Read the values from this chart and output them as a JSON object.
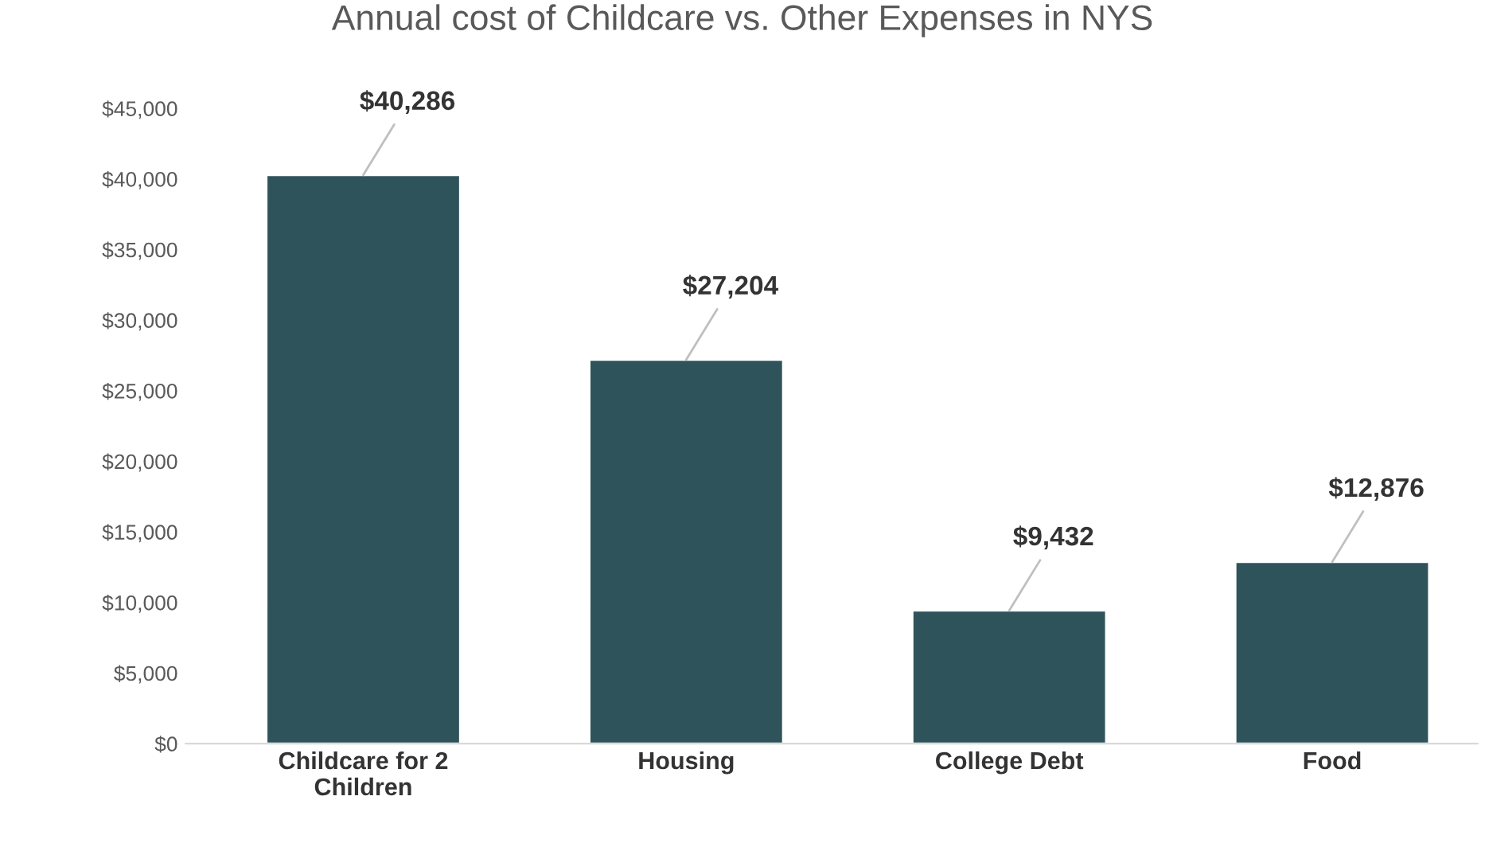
{
  "chart_data": {
    "type": "bar",
    "title": "Annual cost of Childcare vs. Other Expenses in NYS",
    "categories": [
      "Childcare for 2\nChildren",
      "Housing",
      "College Debt",
      "Food"
    ],
    "values": [
      40286,
      27204,
      9432,
      12876
    ],
    "color": "#2f535a",
    "value_labels": [
      "$40,286",
      "$27,204",
      "$9,432",
      "$12,876"
    ],
    "ylim": [
      0,
      45000
    ],
    "yticks": [
      {
        "value": 0,
        "label": "$0"
      },
      {
        "value": 5000,
        "label": "$5,000"
      },
      {
        "value": 10000,
        "label": "$10,000"
      },
      {
        "value": 15000,
        "label": "$15,000"
      },
      {
        "value": 20000,
        "label": "$20,000"
      },
      {
        "value": 25000,
        "label": "$25,000"
      },
      {
        "value": 30000,
        "label": "$30,000"
      },
      {
        "value": 35000,
        "label": "$35,000"
      },
      {
        "value": 40000,
        "label": "$40,000"
      },
      {
        "value": 45000,
        "label": "$45,000"
      }
    ],
    "grid": false,
    "legend": false
  }
}
